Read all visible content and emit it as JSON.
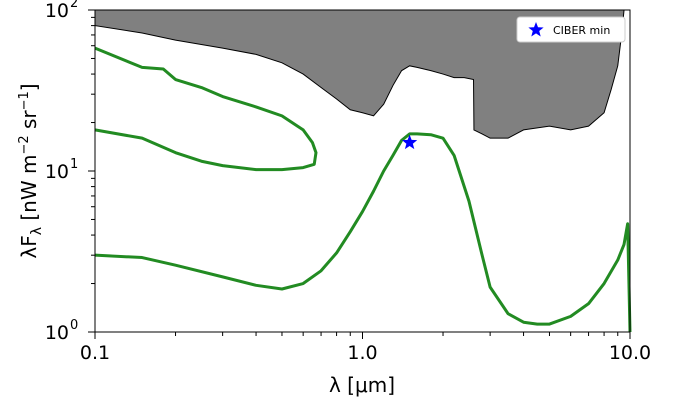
{
  "chart_data": {
    "type": "line",
    "xscale": "log",
    "yscale": "log",
    "xlim": [
      0.1,
      10.0
    ],
    "ylim": [
      1,
      100
    ],
    "xlabel": "λ  [μm]",
    "ylabel_main": "λF",
    "ylabel_sub": "λ",
    "ylabel_units_parts": [
      "  [nW m",
      "−2",
      " sr",
      "−1",
      "]"
    ],
    "x_ticks": [
      {
        "value": 0.1,
        "label": "0.1"
      },
      {
        "value": 1.0,
        "label": "1.0"
      },
      {
        "value": 10.0,
        "label": "10.0"
      }
    ],
    "y_ticks": [
      {
        "value": 1,
        "base": "10",
        "exp": "0"
      },
      {
        "value": 10,
        "base": "10",
        "exp": "1"
      },
      {
        "value": 100,
        "base": "10",
        "exp": "2"
      }
    ],
    "colors": {
      "shaded": "#808080",
      "contour": "#228b22",
      "marker": "#0000ff"
    },
    "shaded_region": {
      "x": [
        0.1,
        0.15,
        0.2,
        0.3,
        0.4,
        0.5,
        0.6,
        0.7,
        0.8,
        0.9,
        1.0,
        1.1,
        1.2,
        1.3,
        1.4,
        1.5,
        1.6,
        1.8,
        2.0,
        2.2,
        2.4,
        2.6,
        2.61,
        2.8,
        3.0,
        3.5,
        4.0,
        5.0,
        6.0,
        7.0,
        8.0,
        8.5,
        9.0,
        9.3,
        9.5
      ],
      "y": [
        80,
        72,
        65,
        58,
        53,
        47,
        40,
        33,
        28,
        24,
        23,
        22,
        26,
        34,
        42,
        45,
        44,
        42,
        40,
        38,
        38,
        37,
        18,
        17,
        16,
        16,
        18,
        19,
        18,
        19,
        23,
        32,
        45,
        70,
        100
      ]
    },
    "series": [
      {
        "x": [
          0.1,
          0.15,
          0.18,
          0.2,
          0.25,
          0.3,
          0.4,
          0.5,
          0.6,
          0.65,
          0.67,
          0.66,
          0.6,
          0.5,
          0.4,
          0.3,
          0.25,
          0.2,
          0.15,
          0.1
        ],
        "y": [
          58,
          44,
          43,
          37,
          33,
          29,
          25,
          22,
          18,
          15,
          13,
          11,
          10.5,
          10.2,
          10.2,
          10.8,
          11.5,
          13,
          16,
          18
        ]
      },
      {
        "x": [
          0.1,
          0.15,
          0.2,
          0.3,
          0.4,
          0.5,
          0.6,
          0.7,
          0.8,
          0.9,
          1.0,
          1.1,
          1.2,
          1.3,
          1.4,
          1.5,
          1.6,
          1.8,
          2.0,
          2.2,
          2.5,
          2.8,
          3.0,
          3.5,
          4.0,
          4.5,
          5.0,
          6.0,
          7.0,
          8.0,
          9.0,
          9.5,
          9.8,
          10.0
        ],
        "y": [
          3.0,
          2.9,
          2.6,
          2.2,
          1.95,
          1.85,
          2.0,
          2.4,
          3.1,
          4.2,
          5.6,
          7.5,
          10.0,
          12.5,
          15.5,
          17.0,
          17.0,
          16.8,
          16.0,
          12.5,
          6.5,
          3.0,
          1.9,
          1.3,
          1.15,
          1.12,
          1.12,
          1.25,
          1.5,
          2.0,
          2.8,
          3.5,
          4.7,
          1.0
        ]
      }
    ],
    "points": [
      {
        "name": "CIBER min",
        "x": 1.5,
        "y": 15.0
      }
    ],
    "legend": {
      "position": "top-right",
      "entries": [
        "CIBER min"
      ]
    }
  }
}
